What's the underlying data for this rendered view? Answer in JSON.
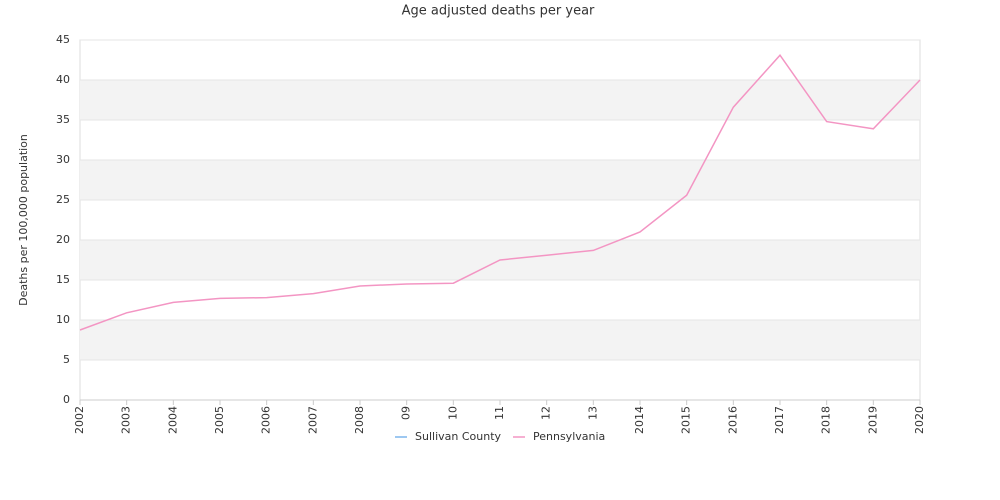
{
  "chart_data": {
    "type": "line",
    "title": "Age adjusted deaths per year",
    "y_label": "Deaths per 100,000 population",
    "categories": [
      "2002",
      "2003",
      "2004",
      "2005",
      "2006",
      "2007",
      "2008",
      "09",
      "10",
      "11",
      "12",
      "13",
      "2014",
      "2015",
      "2016",
      "2017",
      "2018",
      "2019",
      "2020"
    ],
    "series": [
      {
        "name": "Sullivan County",
        "color": "#7cb5ec",
        "values": [
          null,
          null,
          null,
          null,
          null,
          null,
          null,
          null,
          null,
          null,
          null,
          null,
          null,
          null,
          null,
          null,
          null,
          null,
          null
        ]
      },
      {
        "name": "Pennsylvania",
        "color": "#f395c3",
        "values": [
          8.75,
          10.9,
          12.2,
          12.7,
          12.8,
          13.3,
          14.25,
          14.5,
          14.6,
          17.5,
          18.1,
          18.7,
          21.0,
          25.6,
          36.6,
          43.1,
          34.8,
          33.9,
          40.0
        ]
      }
    ],
    "ylim": [
      0,
      45
    ],
    "yticks": [
      0,
      5,
      10,
      15,
      20,
      25,
      30,
      35,
      40,
      45
    ],
    "grid": true,
    "legend": "bottom"
  }
}
